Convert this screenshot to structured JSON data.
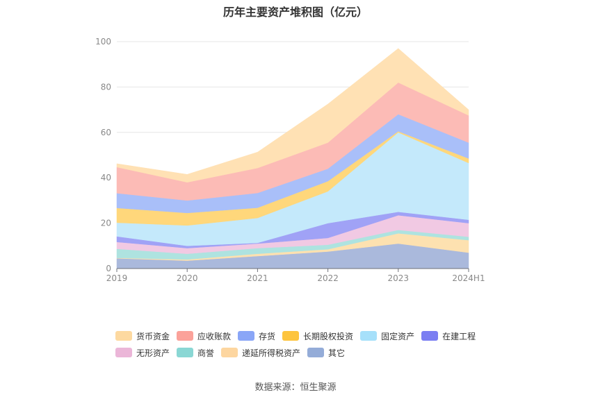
{
  "chart_data": {
    "type": "area",
    "stacked": true,
    "title": "历年主要资产堆积图（亿元）",
    "x": [
      "2019",
      "2020",
      "2021",
      "2022",
      "2023",
      "2024H1"
    ],
    "ylim": [
      0,
      100
    ],
    "yticks": [
      "0",
      "20",
      "40",
      "60",
      "80",
      "100"
    ],
    "grid": true,
    "legend_position": "bottom",
    "series": [
      {
        "name": "其它",
        "color": "#aab9dc",
        "values": [
          4.5,
          3.5,
          5.5,
          7.5,
          11,
          7
        ]
      },
      {
        "name": "递延所得税资产",
        "color": "#fde1b0",
        "values": [
          0.2,
          0.5,
          1.0,
          1.0,
          4.5,
          5.5
        ]
      },
      {
        "name": "商誉",
        "color": "#aee3e0",
        "values": [
          4,
          2.5,
          2.5,
          2,
          1.5,
          1.5
        ]
      },
      {
        "name": "无形资产",
        "color": "#f1c9e3",
        "values": [
          3,
          2.5,
          2,
          3,
          6.5,
          6
        ]
      },
      {
        "name": "在建工程",
        "color": "#a0a2f6",
        "values": [
          2.5,
          1,
          0.3,
          6.5,
          1.5,
          1.5
        ]
      },
      {
        "name": "固定资产",
        "color": "#c4e9fb",
        "values": [
          6,
          9,
          11,
          14,
          35,
          25
        ]
      },
      {
        "name": "长期股权投资",
        "color": "#ffd77b",
        "values": [
          6.5,
          5.5,
          4.5,
          4.5,
          0.5,
          2
        ]
      },
      {
        "name": "存货",
        "color": "#a9bff9",
        "values": [
          6.5,
          5.5,
          6.5,
          5.5,
          7.5,
          7
        ]
      },
      {
        "name": "应收账款",
        "color": "#fcbbb6",
        "values": [
          11.5,
          8,
          11,
          11.5,
          14,
          12
        ]
      },
      {
        "name": "货币资金",
        "color": "#ffe1b4",
        "values": [
          1.5,
          3.5,
          7,
          17,
          15,
          2.5
        ]
      }
    ]
  },
  "legend": [
    {
      "name": "货币资金",
      "color": "#fdd9a0"
    },
    {
      "name": "应收账款",
      "color": "#fba29a"
    },
    {
      "name": "存货",
      "color": "#8aa6f7"
    },
    {
      "name": "长期股权投资",
      "color": "#fdc43e"
    },
    {
      "name": "固定资产",
      "color": "#a6e0fa"
    },
    {
      "name": "在建工程",
      "color": "#7b7ef2"
    },
    {
      "name": "无形资产",
      "color": "#ebb6d8"
    },
    {
      "name": "商誉",
      "color": "#8ad7d4"
    },
    {
      "name": "递延所得税资产",
      "color": "#fdd6a0"
    },
    {
      "name": "其它",
      "color": "#94acd8"
    }
  ],
  "source": "数据来源：恒生聚源"
}
